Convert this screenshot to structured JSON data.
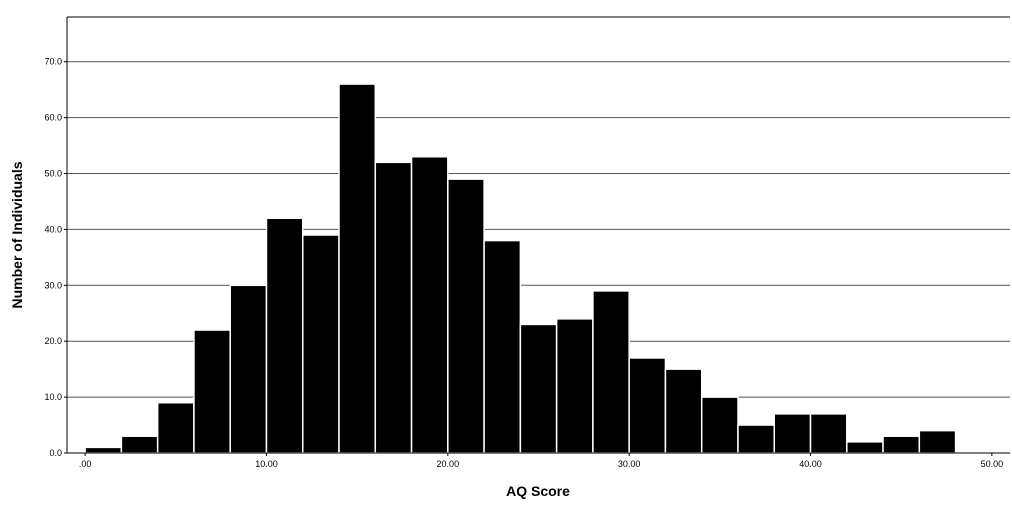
{
  "chart_data": {
    "type": "bar",
    "xlabel": "AQ Score",
    "ylabel": "Number of Individuals",
    "x_ticks": [
      ".00",
      "10.00",
      "20.00",
      "30.00",
      "40.00",
      "50.00"
    ],
    "y_ticks": [
      "0.0",
      "10.0",
      "20.0",
      "30.0",
      "40.0",
      "50.0",
      "60.0",
      "70.0"
    ],
    "xlim": [
      -1.0,
      51.0
    ],
    "ylim": [
      0,
      78
    ],
    "bin_width": 2,
    "bin_starts": [
      0,
      2,
      4,
      6,
      8,
      10,
      12,
      14,
      16,
      18,
      20,
      22,
      24,
      26,
      28,
      30,
      32,
      34,
      36,
      38,
      40,
      42,
      44,
      46
    ],
    "values": [
      1,
      3,
      9,
      22,
      30,
      42,
      39,
      66,
      52,
      53,
      49,
      38,
      23,
      24,
      29,
      17,
      15,
      10,
      5,
      7,
      7,
      2,
      3,
      4
    ],
    "grid": true,
    "bar_color": "#000000",
    "bar_edge_color": "#ffffff",
    "grid_color": "#555555",
    "legend": "none"
  }
}
